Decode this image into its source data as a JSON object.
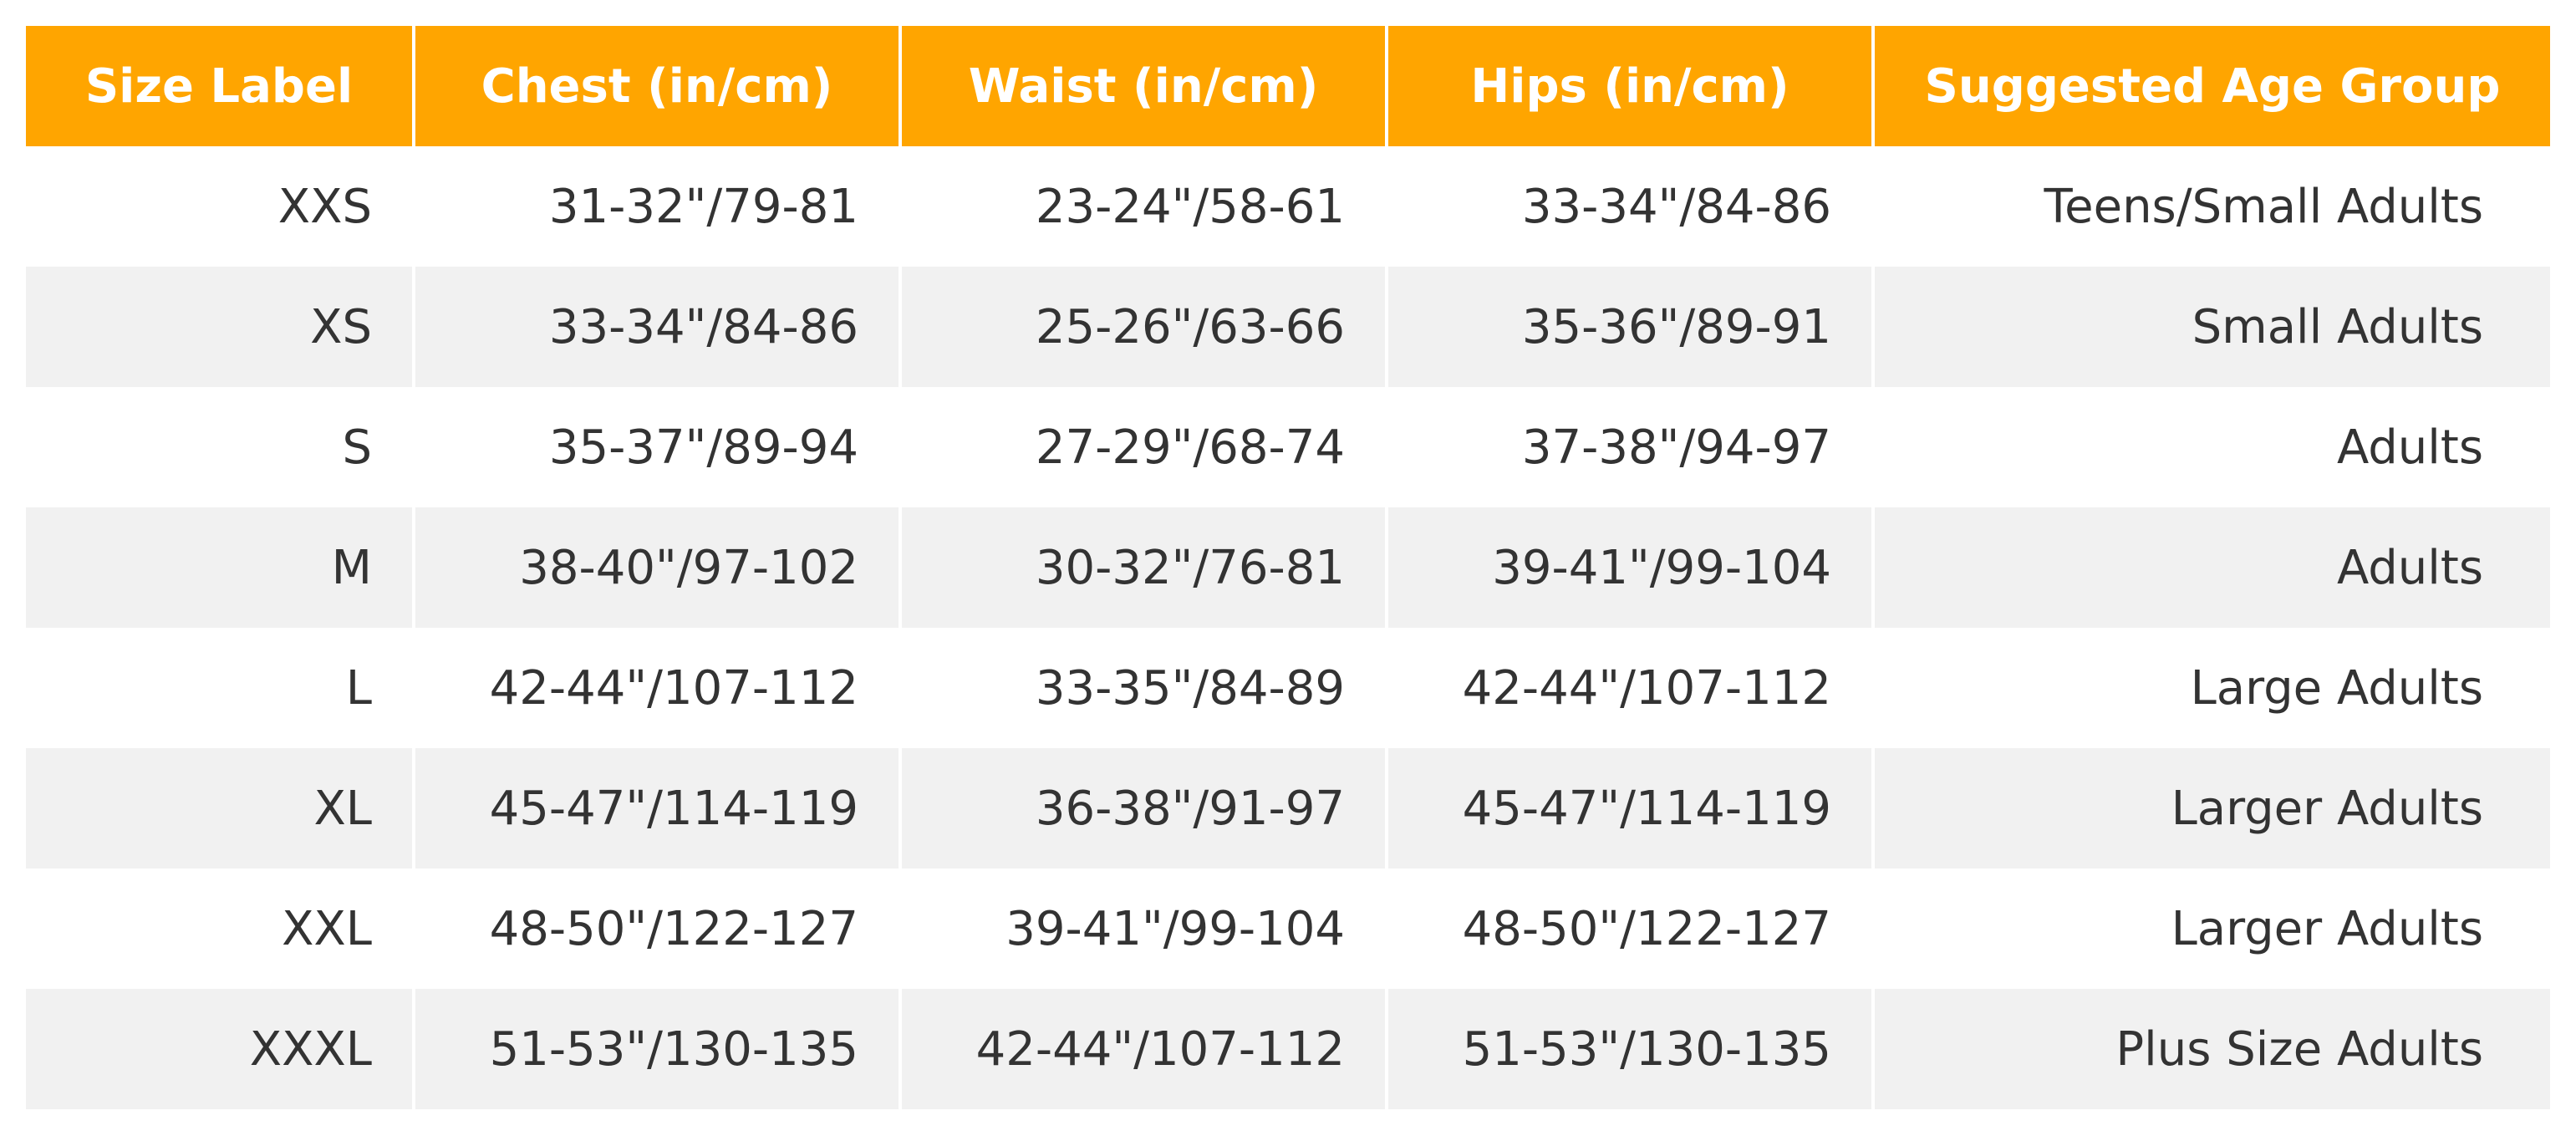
{
  "colors": {
    "header_bg": "#FFA500",
    "header_text": "#FFFFFF",
    "row_stripe": "#F1F1F1",
    "row_plain": "#FFFFFF",
    "cell_text": "#333333"
  },
  "chart_data": {
    "type": "table",
    "columns": [
      "Size Label",
      "Chest (in/cm)",
      "Waist (in/cm)",
      "Hips (in/cm)",
      "Suggested Age Group"
    ],
    "rows": [
      [
        "XXS",
        "31-32\"/79-81",
        "23-24\"/58-61",
        "33-34\"/84-86",
        "Teens/Small Adults"
      ],
      [
        "XS",
        "33-34\"/84-86",
        "25-26\"/63-66",
        "35-36\"/89-91",
        "Small Adults"
      ],
      [
        "S",
        "35-37\"/89-94",
        "27-29\"/68-74",
        "37-38\"/94-97",
        "Adults"
      ],
      [
        "M",
        "38-40\"/97-102",
        "30-32\"/76-81",
        "39-41\"/99-104",
        "Adults"
      ],
      [
        "L",
        "42-44\"/107-112",
        "33-35\"/84-89",
        "42-44\"/107-112",
        "Large Adults"
      ],
      [
        "XL",
        "45-47\"/114-119",
        "36-38\"/91-97",
        "45-47\"/114-119",
        "Larger Adults"
      ],
      [
        "XXL",
        "48-50\"/122-127",
        "39-41\"/99-104",
        "48-50\"/122-127",
        "Larger Adults"
      ],
      [
        "XXXL",
        "51-53\"/130-135",
        "42-44\"/107-112",
        "51-53\"/130-135",
        "Plus Size Adults"
      ]
    ]
  }
}
